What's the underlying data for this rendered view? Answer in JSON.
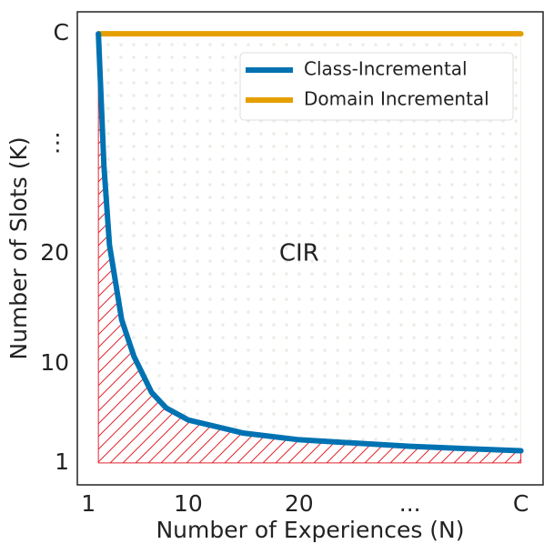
{
  "chart_data": {
    "type": "line",
    "xlabel": "Number of Experiences (N)",
    "ylabel": "Number of Slots (K)",
    "xlim": [
      0,
      42
    ],
    "ylim": [
      -1,
      42
    ],
    "xticks": [
      1,
      10,
      20,
      {
        "value": 30,
        "label": "..."
      },
      {
        "value": 40,
        "label": "C"
      }
    ],
    "yticks": [
      1,
      10,
      20,
      {
        "value": 30,
        "label": "⋮"
      },
      {
        "value": 40,
        "label": "C"
      }
    ],
    "series": [
      {
        "name": "Class-Incremental",
        "color": "#0072b2",
        "x": [
          1.9,
          2.4,
          2.9,
          4,
          5.1,
          6.7,
          8,
          10,
          15,
          20,
          30,
          40
        ],
        "values": [
          40,
          28,
          20.8,
          14,
          10.7,
          7.4,
          6,
          4.9,
          3.7,
          3.1,
          2.5,
          2.1
        ]
      },
      {
        "name": "Domain Incremental",
        "color": "#e69f00",
        "x": [
          1.9,
          40
        ],
        "values": [
          40,
          40
        ]
      }
    ],
    "annotations": [
      {
        "text": "CIR",
        "x": 20,
        "y": 20
      }
    ],
    "legend": "upper right"
  }
}
